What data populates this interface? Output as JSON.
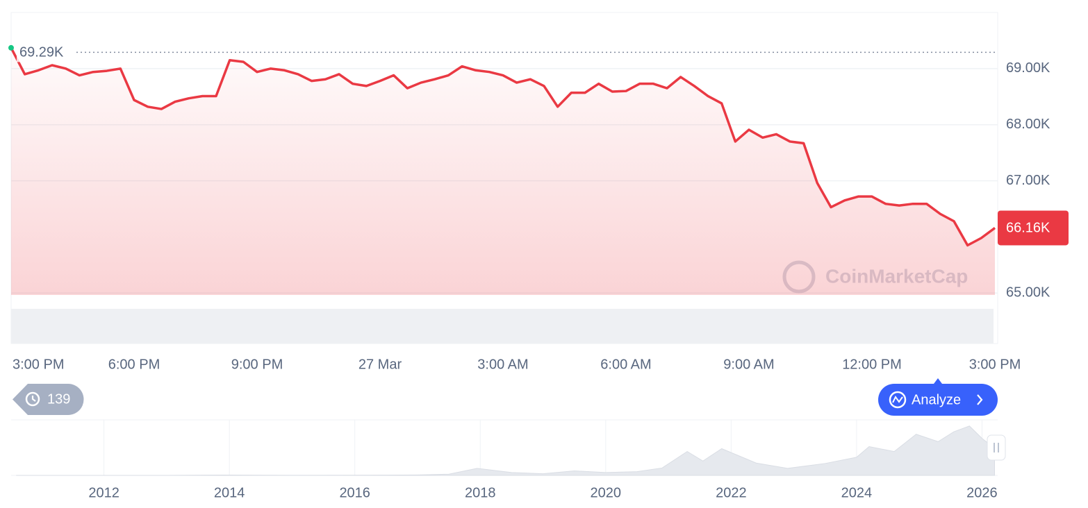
{
  "chart_data": [
    {
      "type": "line",
      "color": "#ea3943",
      "xticks": [
        "3:00 PM",
        "6:00 PM",
        "9:00 PM",
        "27 Mar",
        "3:00 AM",
        "6:00 AM",
        "9:00 AM",
        "12:00 PM",
        "3:00 PM"
      ],
      "values": [
        69.37,
        68.9,
        68.97,
        69.06,
        69.0,
        68.88,
        68.94,
        68.96,
        69.0,
        68.44,
        68.32,
        68.28,
        68.41,
        68.47,
        68.51,
        68.51,
        69.15,
        69.12,
        68.94,
        69.0,
        68.97,
        68.9,
        68.78,
        68.81,
        68.9,
        68.73,
        68.69,
        68.78,
        68.88,
        68.65,
        68.75,
        68.81,
        68.88,
        69.04,
        68.97,
        68.94,
        68.88,
        68.75,
        68.81,
        68.69,
        68.32,
        68.57,
        68.57,
        68.73,
        68.59,
        68.6,
        68.73,
        68.73,
        68.65,
        68.85,
        68.69,
        68.51,
        68.38,
        67.7,
        67.91,
        67.77,
        67.83,
        67.7,
        67.67,
        66.96,
        66.53,
        66.65,
        66.72,
        66.72,
        66.59,
        66.56,
        66.59,
        66.59,
        66.41,
        66.28,
        65.85,
        65.98,
        66.16
      ],
      "ylim": [
        64.1,
        70.0
      ],
      "yticks": [
        {
          "value": 65,
          "label": "65.00K"
        },
        {
          "value": 67,
          "label": "67.00K"
        },
        {
          "value": 68,
          "label": "68.00K"
        },
        {
          "value": 69,
          "label": "69.00K"
        }
      ],
      "grid": true,
      "reference_line": {
        "value": 69.29,
        "label": "69.29K"
      },
      "last_price": {
        "value": 66.16,
        "label": "66.16K"
      },
      "watermark": "CoinMarketCap"
    },
    {
      "type": "area",
      "color": "#e6e9ee",
      "x": [
        2010.6,
        2013.0,
        2013.9,
        2015,
        2016.5,
        2017.0,
        2017.5,
        2017.95,
        2018.5,
        2019.0,
        2019.5,
        2020.0,
        2020.5,
        2020.9,
        2021.3,
        2021.55,
        2021.85,
        2022.4,
        2022.9,
        2023.5,
        2024.0,
        2024.2,
        2024.6,
        2024.95,
        2025.3,
        2025.55,
        2025.8,
        2026.0,
        2026.2
      ],
      "values": [
        0,
        0.1,
        0.8,
        0.3,
        0.6,
        1,
        3,
        17,
        7,
        4,
        11,
        7,
        9,
        18,
        58,
        35,
        65,
        30,
        17,
        29,
        44,
        70,
        58,
        100,
        82,
        106,
        120,
        90,
        66
      ],
      "xlim": [
        2010.52,
        2026.25
      ],
      "ylim": [
        0,
        135
      ],
      "xticks": [
        2012,
        2014,
        2016,
        2018,
        2020,
        2022,
        2024,
        2026
      ]
    }
  ],
  "controls": {
    "history_count": 139,
    "analyze": "Analyze"
  }
}
